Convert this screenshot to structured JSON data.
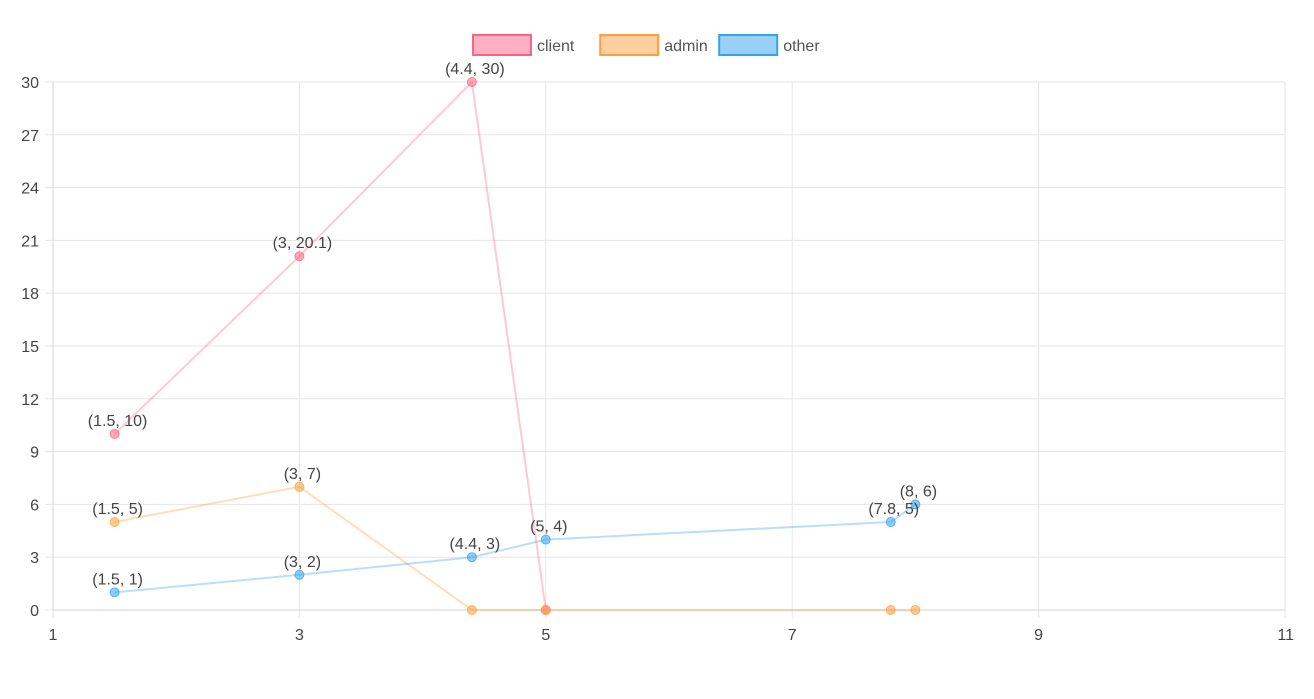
{
  "chart_data": {
    "type": "line",
    "title": "",
    "xlabel": "",
    "ylabel": "",
    "xlim": [
      1,
      11
    ],
    "ylim": [
      0,
      30
    ],
    "x_ticks": [
      "1",
      "3",
      "5",
      "7",
      "9",
      "11"
    ],
    "y_ticks": [
      "0",
      "3",
      "6",
      "9",
      "12",
      "15",
      "18",
      "21",
      "24",
      "27",
      "30"
    ],
    "grid": true,
    "legend_position": "top-center",
    "series": [
      {
        "name": "client",
        "color": "#ff6384",
        "points": [
          {
            "x": 1.5,
            "y": 10,
            "label": "(1.5, 10)"
          },
          {
            "x": 3,
            "y": 20.1,
            "label": "(3, 20.1)"
          },
          {
            "x": 4.4,
            "y": 30,
            "label": "(4.4, 30)"
          },
          {
            "x": 5,
            "y": 0,
            "label": ""
          }
        ]
      },
      {
        "name": "admin",
        "color": "#ff9f40",
        "points": [
          {
            "x": 1.5,
            "y": 5,
            "label": "(1.5, 5)"
          },
          {
            "x": 3,
            "y": 7,
            "label": "(3, 7)"
          },
          {
            "x": 4.4,
            "y": 0,
            "label": ""
          },
          {
            "x": 5,
            "y": 0,
            "label": ""
          },
          {
            "x": 7.8,
            "y": 0,
            "label": ""
          },
          {
            "x": 8,
            "y": 0,
            "label": ""
          }
        ]
      },
      {
        "name": "other",
        "color": "#36a2eb",
        "points": [
          {
            "x": 1.5,
            "y": 1,
            "label": "(1.5, 1)"
          },
          {
            "x": 3,
            "y": 2,
            "label": "(3, 2)"
          },
          {
            "x": 4.4,
            "y": 3,
            "label": "(4.4, 3)"
          },
          {
            "x": 5,
            "y": 4,
            "label": "(5, 4)"
          },
          {
            "x": 7.8,
            "y": 5,
            "label": "(7.8, 5)"
          },
          {
            "x": 8,
            "y": 6,
            "label": "(8, 6)"
          }
        ]
      }
    ]
  }
}
